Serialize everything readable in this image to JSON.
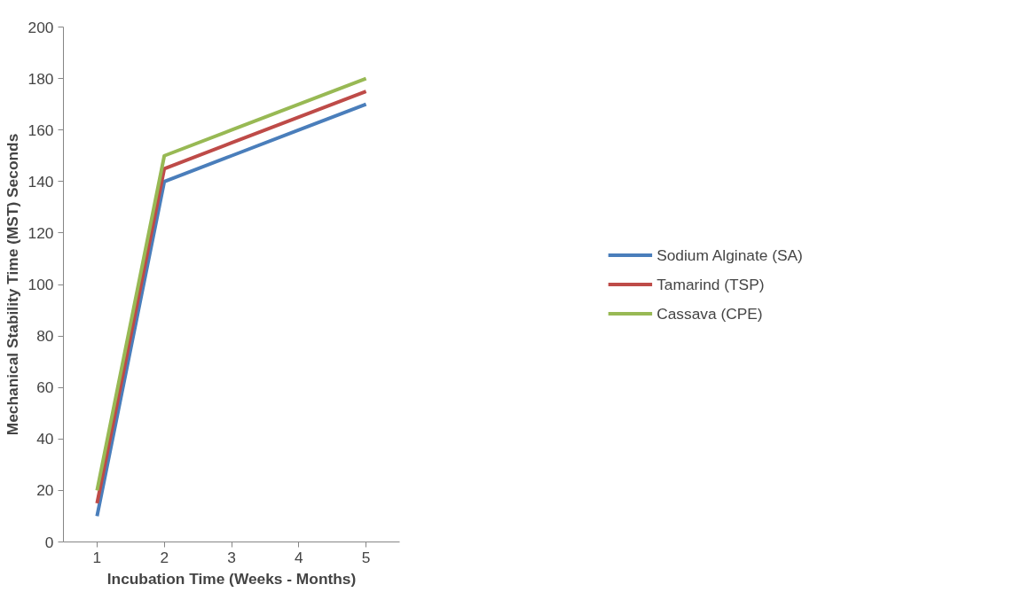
{
  "chart_data": {
    "type": "line",
    "xlabel": "Incubation Time (Weeks - Months)",
    "ylabel": "Mechanical Stability Time (MST) Seconds",
    "categories": [
      "1",
      "2",
      "3",
      "4",
      "5"
    ],
    "series": [
      {
        "name": "Sodium Alginate (SA)",
        "color": "#4a7ebb",
        "values": [
          10,
          140,
          150,
          160,
          170
        ]
      },
      {
        "name": "Tamarind (TSP)",
        "color": "#be4b48",
        "values": [
          15,
          145,
          155,
          165,
          175
        ]
      },
      {
        "name": "Cassava (CPE)",
        "color": "#98b954",
        "values": [
          20,
          150,
          160,
          170,
          180
        ]
      }
    ],
    "ylim": [
      0,
      200
    ],
    "yticks": [
      0,
      20,
      40,
      60,
      80,
      100,
      120,
      140,
      160,
      180,
      200
    ],
    "grid": false,
    "legend": "right",
    "marker": "none",
    "line_style": "solid"
  }
}
